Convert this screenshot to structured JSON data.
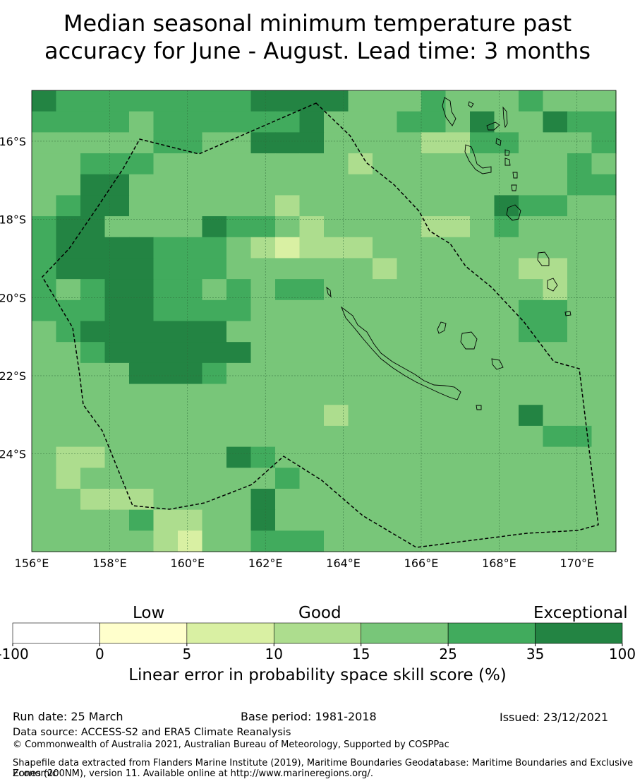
{
  "title_line1": "Median seasonal minimum temperature past",
  "title_line2": "accuracy for June - August. Lead time: 3 months",
  "map": {
    "lon_range": [
      156,
      171
    ],
    "lat_range": [
      -26.5,
      -14.7
    ],
    "cell_size_deg": 0.833,
    "lon_ticks": [
      "156°E",
      "158°E",
      "160°E",
      "162°E",
      "164°E",
      "166°E",
      "168°E",
      "170°E"
    ],
    "lat_ticks": [
      "16°S",
      "18°S",
      "20°S",
      "22°S",
      "24°S"
    ],
    "grid": true
  },
  "colorbar": {
    "category_labels": [
      "Low",
      "Good",
      "Exceptional"
    ],
    "tick_labels": [
      "-100",
      "0",
      "5",
      "10",
      "15",
      "25",
      "35",
      "100"
    ],
    "colors": [
      "#ffffff",
      "#ffffcc",
      "#d9f0a3",
      "#addd8e",
      "#78c679",
      "#41ab5d",
      "#238443"
    ],
    "label": "Linear error in probability space skill score (%)"
  },
  "footer": {
    "run_date": "Run date: 25 March",
    "base_period": "Base period: 1981-2018",
    "issued": "Issued: 23/12/2021",
    "data_source": "Data source: ACCESS-S2 and ERA5 Climate Reanalysis",
    "copyright": "© Commonwealth of Australia 2021, Australian Bureau of Meteorology, Supported by COSPPac",
    "shapefile_line1": "Shapefile data extracted from Flanders Marine Institute (2019), Maritime Boundaries Geodatabase: Maritime Boundaries and Exclusive Economic",
    "shapefile_line2": "Zones (200NM), version 11. Available online at http://www.marineregions.org/."
  }
}
